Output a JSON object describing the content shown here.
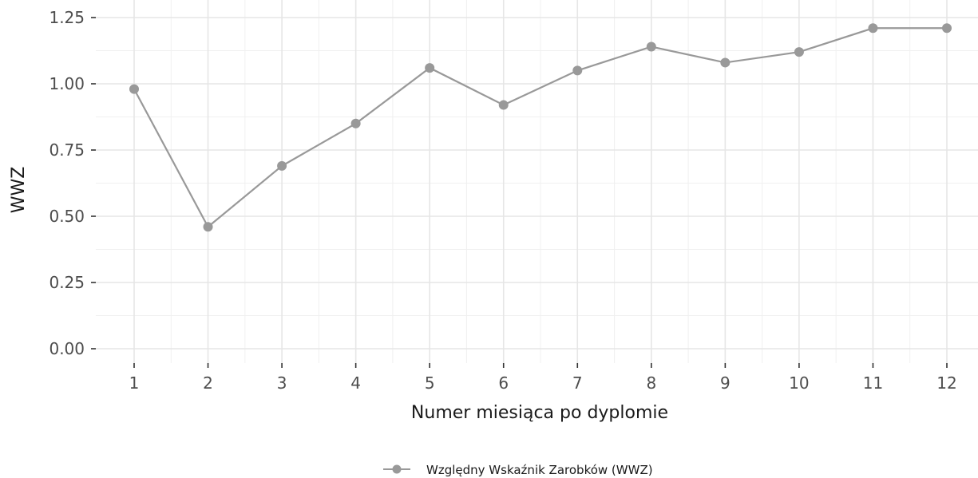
{
  "chart_data": {
    "type": "line",
    "title": "",
    "xlabel": "Numer miesiąca po dyplomie",
    "ylabel": "WWZ",
    "x": [
      1,
      2,
      3,
      4,
      5,
      6,
      7,
      8,
      9,
      10,
      11,
      12
    ],
    "x_tick_labels": [
      "1",
      "2",
      "3",
      "4",
      "5",
      "6",
      "7",
      "8",
      "9",
      "10",
      "11",
      "12"
    ],
    "y_tick_labels": [
      "0.00",
      "0.25",
      "0.50",
      "0.75",
      "1.00",
      "1.25"
    ],
    "y_ticks": [
      0,
      0.25,
      0.5,
      0.75,
      1.0,
      1.25
    ],
    "ylim": [
      0,
      1.25
    ],
    "xlim": [
      1,
      12
    ],
    "grid": true,
    "legend_position": "bottom",
    "series": [
      {
        "name": "Względny Wskaźnik Zarobków (WWZ)",
        "color": "#999999",
        "values": [
          0.98,
          0.46,
          0.69,
          0.85,
          1.06,
          0.92,
          1.05,
          1.14,
          1.08,
          1.12,
          1.21,
          1.21
        ]
      }
    ]
  }
}
